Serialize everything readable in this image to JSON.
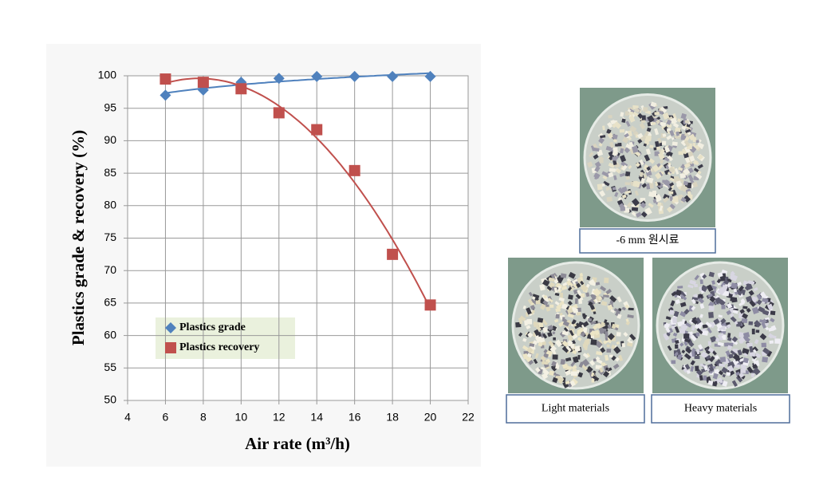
{
  "chart_data": {
    "type": "scatter",
    "xlabel": "Air rate (m³/h)",
    "ylabel": "Plastics grade & recovery (%)",
    "x": [
      6,
      8,
      10,
      12,
      14,
      16,
      18,
      20
    ],
    "series": [
      {
        "name": "Plastics grade",
        "color": "#4f81bd",
        "marker": "diamond",
        "trendline": "logarithmic",
        "values": [
          97,
          97.8,
          99,
          99.6,
          99.9,
          99.9,
          99.9,
          99.9
        ]
      },
      {
        "name": "Plastics recovery",
        "color": "#c0504d",
        "marker": "square",
        "trendline": "polynomial",
        "values": [
          99.5,
          99,
          98,
          94.3,
          91.7,
          85.4,
          72.5,
          64.7
        ]
      }
    ],
    "xlim": [
      4,
      22
    ],
    "xticks": [
      4,
      6,
      8,
      10,
      12,
      14,
      16,
      18,
      20,
      22
    ],
    "ylim": [
      50,
      100
    ],
    "yticks": [
      50,
      55,
      60,
      65,
      70,
      75,
      80,
      85,
      90,
      95,
      100
    ],
    "grid": true,
    "legend": "lower left"
  },
  "photos": [
    {
      "caption": "-6 mm 원시료"
    },
    {
      "caption": "Light materials"
    },
    {
      "caption": "Heavy materials"
    }
  ]
}
